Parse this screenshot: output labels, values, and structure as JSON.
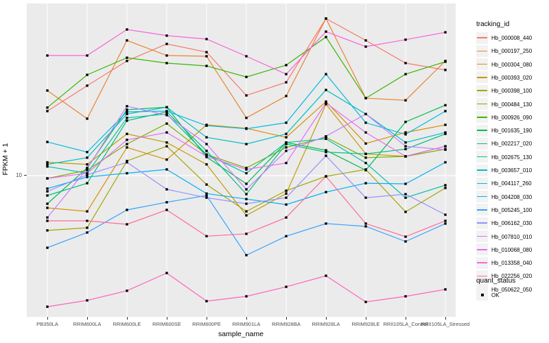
{
  "colors": {
    "panel_bg": "#EBEBEB",
    "grid": "#FFFFFF",
    "axis_text": "#4D4D4D",
    "marker": "#000000",
    "legend_key_bg": "#F2F2F2"
  },
  "axes": {
    "x_title": "sample_name",
    "y_title": "FPKM + 1",
    "y_tick_label": "10"
  },
  "legend": {
    "tracking_title": "tracking_id",
    "quant_title": "quant_status",
    "quant_items": [
      {
        "label": "OK"
      }
    ]
  },
  "chart_data": {
    "type": "line",
    "xlabel": "sample_name",
    "ylabel": "FPKM + 1",
    "y_scale": "log10",
    "y_ticks": [
      10
    ],
    "grid": "vertical-per-category-plus-y10",
    "legend_position": "right",
    "marker": "black-square",
    "categories": [
      "PB350LA",
      "RRIM600LA",
      "RRIM600LE",
      "RRIM600SE",
      "RRIM600PE",
      "RRIM901LA",
      "RRIM928BA",
      "RRIM928LA",
      "RRIM928LE",
      "RRII105LA_Control",
      "RRII105LA_Stressed"
    ],
    "series": [
      {
        "name": "Hb_000008_440",
        "color": "#F8766D",
        "values": [
          22.3,
          30.6,
          41.6,
          51.4,
          46.4,
          27.1,
          31.9,
          70.5,
          53.7,
          40.5,
          37.2
        ]
      },
      {
        "name": "Hb_000197_250",
        "color": "#EA8331",
        "values": [
          28.8,
          20.3,
          53.7,
          44.5,
          44.1,
          20.5,
          26.9,
          70.5,
          26.2,
          25.5,
          41.6
        ]
      },
      {
        "name": "Hb_000304_080",
        "color": "#D89000",
        "values": [
          6.7,
          6.41,
          14.2,
          12.2,
          18.8,
          18.0,
          16.1,
          25.1,
          14.9,
          17.1,
          18.8
        ]
      },
      {
        "name": "Hb_000393_020",
        "color": "#C09B00",
        "values": [
          11.8,
          11.5,
          16.8,
          15.1,
          11.5,
          6.1,
          8.0,
          24.3,
          13.1,
          12.7,
          14.4
        ]
      },
      {
        "name": "Hb_000398_100",
        "color": "#A3A500",
        "values": [
          5.06,
          5.23,
          12.0,
          14.4,
          8.95,
          6.41,
          8.29,
          9.91,
          10.8,
          6.37,
          8.58
        ]
      },
      {
        "name": "Hb_000484_130",
        "color": "#7CAE00",
        "values": [
          9.66,
          10.7,
          14.8,
          19.1,
          13.0,
          11.0,
          14.2,
          16.1,
          12.5,
          12.7,
          13.9
        ]
      },
      {
        "name": "Hb_000926_090",
        "color": "#39B600",
        "values": [
          23.3,
          35.0,
          43.3,
          40.5,
          39.1,
          34.1,
          39.5,
          56.0,
          26.2,
          35.3,
          41.2
        ]
      },
      {
        "name": "Hb_001635_190",
        "color": "#00BB4E",
        "values": [
          7.05,
          11.0,
          22.7,
          23.4,
          12.6,
          9.03,
          15.1,
          13.7,
          10.7,
          19.5,
          24.0
        ]
      },
      {
        "name": "Hb_002217_020",
        "color": "#00BF7D",
        "values": [
          7.81,
          9.1,
          19.8,
          22.1,
          13.6,
          7.94,
          14.8,
          13.4,
          13.1,
          13.9,
          16.8
        ]
      },
      {
        "name": "Hb_002675_130",
        "color": "#00C1A3",
        "values": [
          11.2,
          10.3,
          20.5,
          21.5,
          13.0,
          10.3,
          15.1,
          15.8,
          11.7,
          7.6,
          8.88
        ]
      },
      {
        "name": "Hb_003657_010",
        "color": "#00BFC4",
        "values": [
          11.5,
          12.5,
          21.5,
          23.4,
          16.1,
          14.8,
          16.8,
          29.0,
          21.5,
          15.1,
          17.1
        ]
      },
      {
        "name": "Hb_004117_260",
        "color": "#00BAE0",
        "values": [
          15.2,
          13.4,
          22.1,
          22.3,
          18.6,
          17.9,
          19.3,
          35.3,
          19.3,
          16.7,
          22.3
        ]
      },
      {
        "name": "Hb_004208_030",
        "color": "#00B0F6",
        "values": [
          8.51,
          9.83,
          10.3,
          10.8,
          8.0,
          7.47,
          6.98,
          8.15,
          9.1,
          9.03,
          11.8
        ]
      },
      {
        "name": "Hb_005245_100",
        "color": "#35A2FF",
        "values": [
          4.08,
          4.93,
          6.53,
          7.18,
          7.81,
          3.72,
          4.71,
          5.51,
          5.32,
          4.41,
          5.51
        ]
      },
      {
        "name": "Hb_006162_030",
        "color": "#9590FF",
        "values": [
          8.22,
          10.1,
          11.8,
          8.43,
          7.6,
          7.05,
          7.6,
          12.8,
          7.6,
          7.94,
          6.15
        ]
      },
      {
        "name": "Hb_007810_010",
        "color": "#C77CFF",
        "values": [
          5.94,
          10.9,
          23.7,
          21.2,
          14.8,
          8.43,
          13.6,
          16.3,
          21.5,
          14.4,
          13.8
        ]
      },
      {
        "name": "Hb_010068_080",
        "color": "#E76BF3",
        "values": [
          9.66,
          10.3,
          15.6,
          17.1,
          12.7,
          10.8,
          11.7,
          24.7,
          17.1,
          12.7,
          14.4
        ]
      },
      {
        "name": "Hb_013358_040",
        "color": "#FA62DB",
        "values": [
          44.5,
          44.5,
          61.5,
          57.0,
          54.6,
          44.1,
          35.3,
          59.9,
          49.7,
          54.2,
          59.4
        ]
      },
      {
        "name": "Hb_022256_020",
        "color": "#FF62BC",
        "values": [
          1.96,
          2.12,
          2.39,
          2.98,
          2.1,
          2.23,
          2.51,
          2.88,
          2.08,
          2.23,
          2.43
        ]
      },
      {
        "name": "Hb_050622_050",
        "color": "#FF6A98",
        "values": [
          5.7,
          5.7,
          5.46,
          6.53,
          4.71,
          4.85,
          5.94,
          9.91,
          5.51,
          4.68,
          5.7
        ]
      }
    ]
  }
}
